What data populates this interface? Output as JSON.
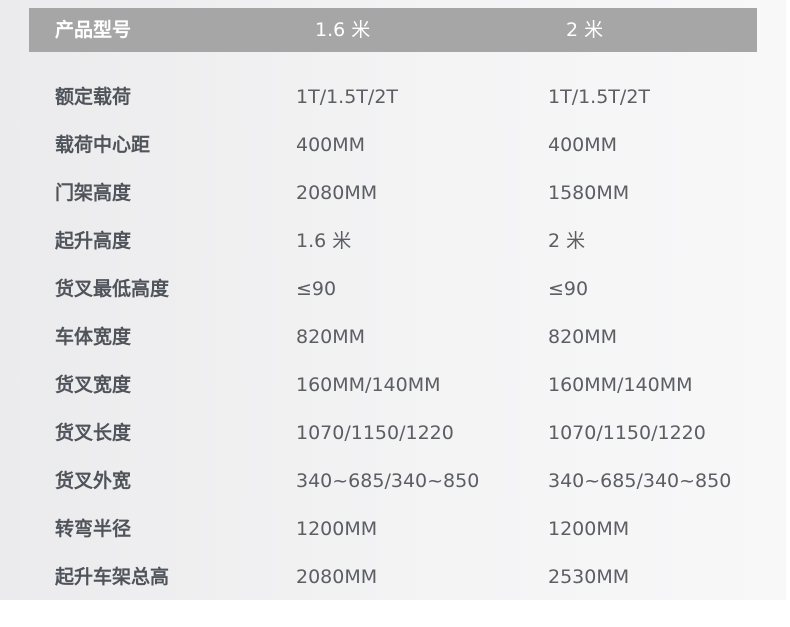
{
  "header": {
    "label": "产品型号",
    "col1": "1.6 米",
    "col2": "2 米"
  },
  "colors": {
    "header_bg": "#a6a6a6",
    "label_text": "#4f535a",
    "value_text": "#5b5e63"
  },
  "rows": [
    {
      "label": "额定载荷",
      "v1": "1T/1.5T/2T",
      "v2": "1T/1.5T/2T"
    },
    {
      "label": "载荷中心距",
      "v1": "400MM",
      "v2": "400MM"
    },
    {
      "label": "门架高度",
      "v1": "2080MM",
      "v2": "1580MM"
    },
    {
      "label": "起升高度",
      "v1": "1.6 米",
      "v2": "2 米"
    },
    {
      "label": "货叉最低高度",
      "v1": "≤90",
      "v2": "≤90"
    },
    {
      "label": "车体宽度",
      "v1": "820MM",
      "v2": "820MM"
    },
    {
      "label": "货叉宽度",
      "v1": "160MM/140MM",
      "v2": "160MM/140MM"
    },
    {
      "label": "货叉长度",
      "v1": "1070/1150/1220",
      "v2": "1070/1150/1220"
    },
    {
      "label": "货叉外宽",
      "v1": "340~685/340~850",
      "v2": "340~685/340~850"
    },
    {
      "label": "转弯半径",
      "v1": "1200MM",
      "v2": "1200MM"
    },
    {
      "label": "起升车架总高",
      "v1": "2080MM",
      "v2": "2530MM"
    }
  ]
}
